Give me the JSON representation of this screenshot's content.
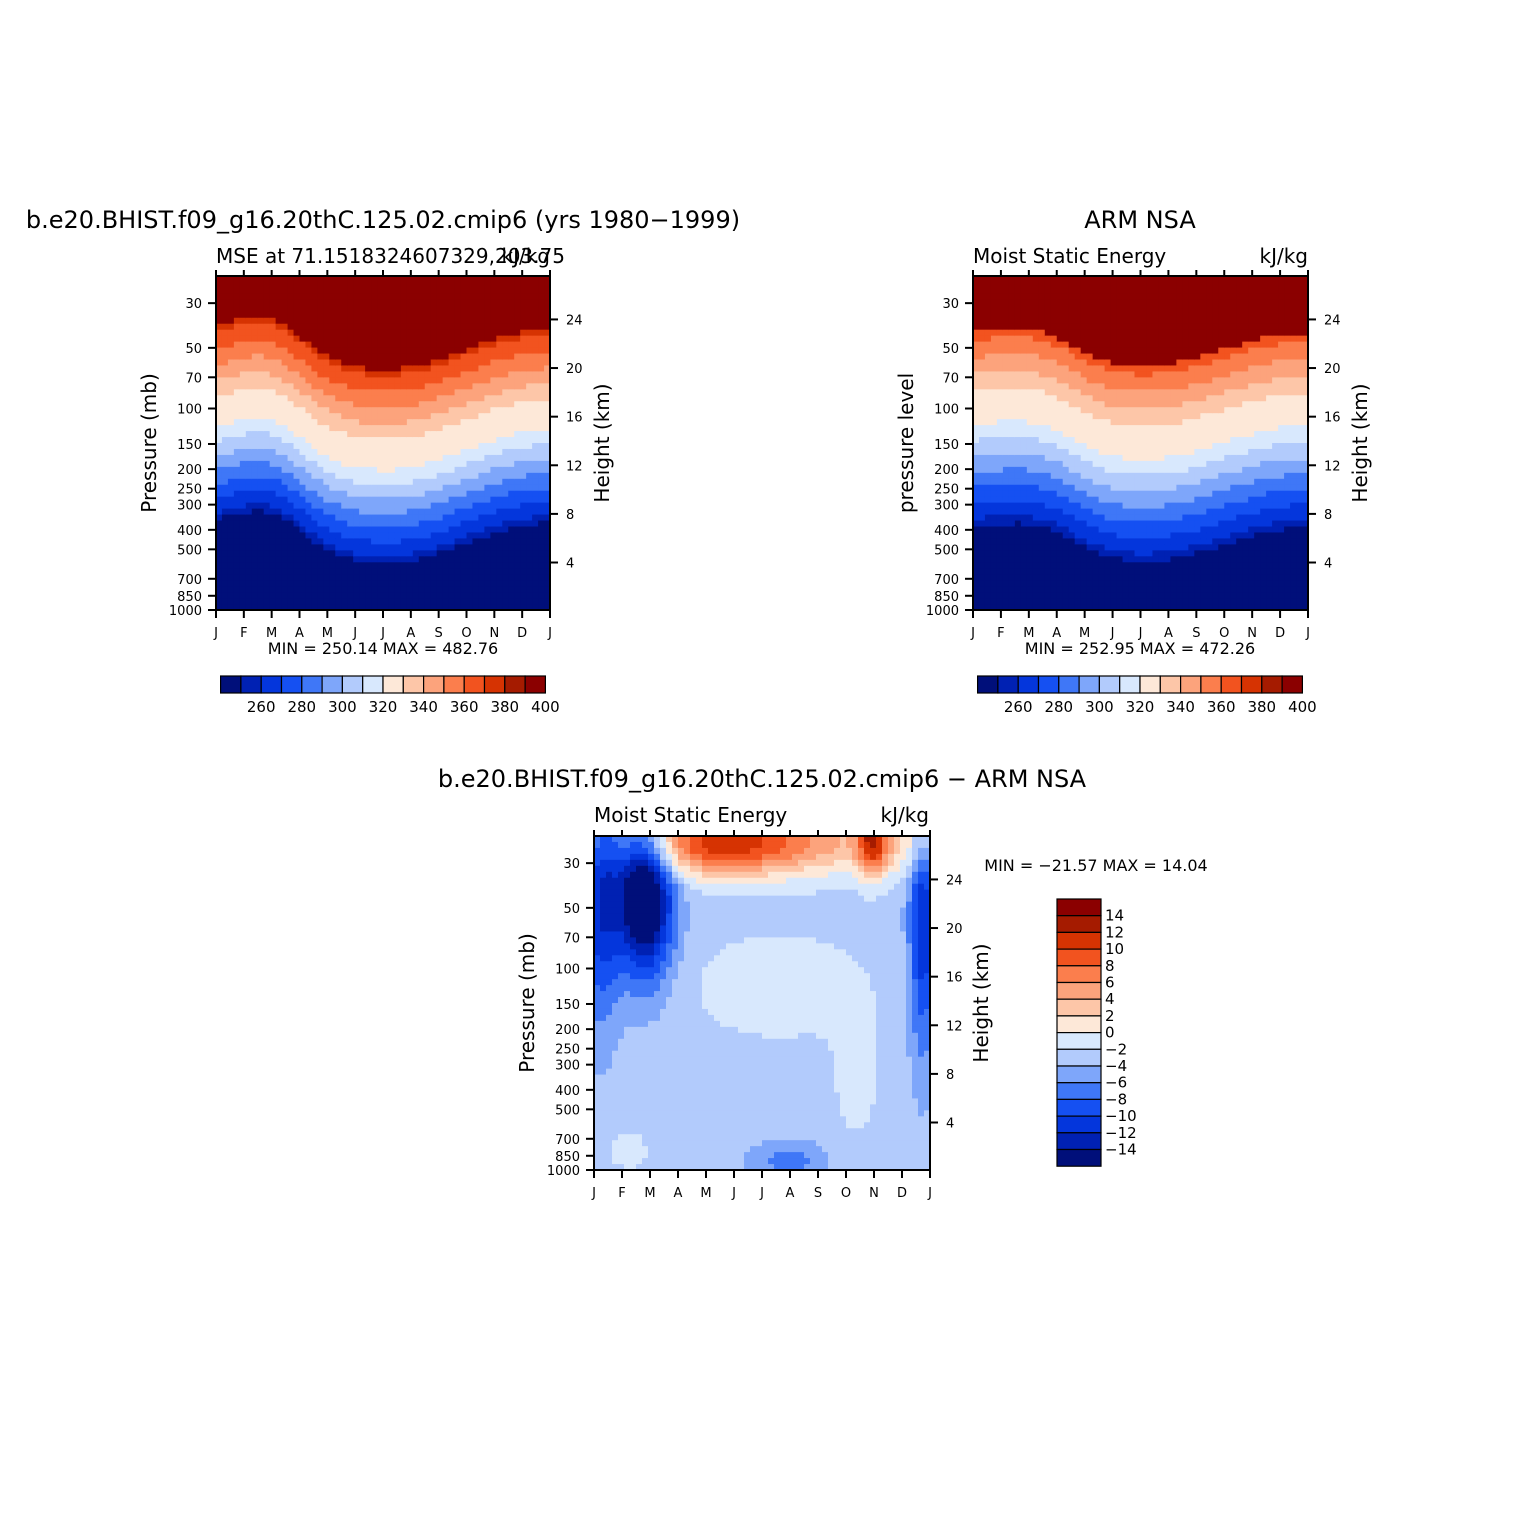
{
  "chart_data": [
    {
      "type": "heatmap",
      "title": "b.e20.BHIST.f09_g16.20thC.125.02.cmip6 (yrs 1980−1999)",
      "subtitle_left": "MSE at 71.1518324607329,203.75",
      "subtitle_right": "kJ/kg",
      "ylabel": "Pressure (mb)",
      "ylabel_right": "Height (km)",
      "y_ticks": [
        "30",
        "50",
        "70",
        "100",
        "150",
        "200",
        "250",
        "300",
        "400",
        "500",
        "700",
        "850",
        "1000"
      ],
      "y_ticks_right": [
        "24",
        "20",
        "16",
        "12",
        "8",
        "4"
      ],
      "x_ticks": [
        "J",
        "F",
        "M",
        "A",
        "M",
        "J",
        "J",
        "A",
        "S",
        "O",
        "N",
        "D",
        "J"
      ],
      "min_max_text": "MIN = 250.14 MAX = 482.76",
      "colorbar_labels": [
        "260",
        "280",
        "300",
        "320",
        "340",
        "360",
        "380",
        "400"
      ],
      "z_min": 250.14,
      "z_max": 482.76
    },
    {
      "type": "heatmap",
      "title": "ARM NSA",
      "subtitle_left": "Moist Static Energy",
      "subtitle_right": "kJ/kg",
      "ylabel": "pressure level",
      "ylabel_right": "Height (km)",
      "y_ticks": [
        "30",
        "50",
        "70",
        "100",
        "150",
        "200",
        "250",
        "300",
        "400",
        "500",
        "700",
        "850",
        "1000"
      ],
      "y_ticks_right": [
        "24",
        "20",
        "16",
        "12",
        "8",
        "4"
      ],
      "x_ticks": [
        "J",
        "F",
        "M",
        "A",
        "M",
        "J",
        "J",
        "A",
        "S",
        "O",
        "N",
        "D",
        "J"
      ],
      "min_max_text": "MIN = 252.95 MAX = 472.26",
      "colorbar_labels": [
        "260",
        "280",
        "300",
        "320",
        "340",
        "360",
        "380",
        "400"
      ],
      "z_min": 252.95,
      "z_max": 472.26
    },
    {
      "type": "heatmap",
      "title": "b.e20.BHIST.f09_g16.20thC.125.02.cmip6 − ARM NSA",
      "subtitle_left": "Moist Static Energy",
      "subtitle_right": "kJ/kg",
      "ylabel": "Pressure (mb)",
      "ylabel_right": "Height (km)",
      "y_ticks": [
        "30",
        "50",
        "70",
        "100",
        "150",
        "200",
        "250",
        "300",
        "400",
        "500",
        "700",
        "850",
        "1000"
      ],
      "y_ticks_right": [
        "24",
        "20",
        "16",
        "12",
        "8",
        "4"
      ],
      "x_ticks": [
        "J",
        "F",
        "M",
        "A",
        "M",
        "J",
        "J",
        "A",
        "S",
        "O",
        "N",
        "D",
        "J"
      ],
      "min_max_text": "MIN = −21.57 MAX =  14.04",
      "colorbar_labels": [
        "14",
        "12",
        "10",
        "8",
        "6",
        "4",
        "2",
        "0",
        "−2",
        "−4",
        "−6",
        "−8",
        "−10",
        "−12",
        "−14"
      ],
      "z_min": -21.57,
      "z_max": 14.04
    }
  ],
  "colors": {
    "palette": [
      "#000f7a",
      "#0021b3",
      "#0436dc",
      "#1550f2",
      "#3f77f7",
      "#7ea6fa",
      "#b2cbfc",
      "#d8e8fd",
      "#fde8d8",
      "#fdc6a8",
      "#fca37c",
      "#fb7e4d",
      "#f2531f",
      "#d63302",
      "#a51b00",
      "#8b0000"
    ],
    "white": "#ffffff"
  }
}
